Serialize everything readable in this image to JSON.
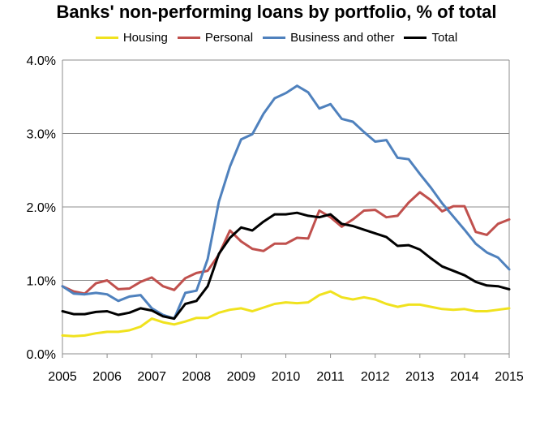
{
  "chart_data": {
    "type": "line",
    "title": "Banks' non-performing loans by portfolio, % of total",
    "xlabel": "",
    "ylabel": "",
    "ylim": [
      0,
      4.0
    ],
    "xlim": [
      2005,
      2015
    ],
    "grid": true,
    "legend_position": "top",
    "yticks": [
      "0.0%",
      "1.0%",
      "2.0%",
      "3.0%",
      "4.0%"
    ],
    "xticks": [
      "2005",
      "2006",
      "2007",
      "2008",
      "2009",
      "2010",
      "2011",
      "2012",
      "2013",
      "2014",
      "2015"
    ],
    "x": [
      2005.0,
      2005.25,
      2005.5,
      2005.75,
      2006.0,
      2006.25,
      2006.5,
      2006.75,
      2007.0,
      2007.25,
      2007.5,
      2007.75,
      2008.0,
      2008.25,
      2008.5,
      2008.75,
      2009.0,
      2009.25,
      2009.5,
      2009.75,
      2010.0,
      2010.25,
      2010.5,
      2010.75,
      2011.0,
      2011.25,
      2011.5,
      2011.75,
      2012.0,
      2012.25,
      2012.5,
      2012.75,
      2013.0,
      2013.25,
      2013.5,
      2013.75,
      2014.0,
      2014.25,
      2014.5,
      2014.75,
      2015.0
    ],
    "series": [
      {
        "name": "Housing",
        "color": "#f0e21e",
        "values": [
          0.25,
          0.24,
          0.25,
          0.28,
          0.3,
          0.3,
          0.32,
          0.37,
          0.48,
          0.43,
          0.4,
          0.44,
          0.49,
          0.49,
          0.56,
          0.6,
          0.62,
          0.58,
          0.63,
          0.68,
          0.7,
          0.69,
          0.7,
          0.8,
          0.85,
          0.77,
          0.74,
          0.77,
          0.74,
          0.68,
          0.64,
          0.67,
          0.67,
          0.64,
          0.61,
          0.6,
          0.61,
          0.58,
          0.58,
          0.6,
          0.62
        ]
      },
      {
        "name": "Personal",
        "color": "#c0504d",
        "values": [
          0.92,
          0.85,
          0.82,
          0.96,
          1.0,
          0.88,
          0.89,
          0.98,
          1.04,
          0.92,
          0.87,
          1.03,
          1.1,
          1.13,
          1.35,
          1.68,
          1.53,
          1.43,
          1.4,
          1.5,
          1.5,
          1.58,
          1.57,
          1.95,
          1.86,
          1.73,
          1.83,
          1.95,
          1.96,
          1.86,
          1.88,
          2.06,
          2.2,
          2.09,
          1.94,
          2.01,
          2.01,
          1.66,
          1.62,
          1.77,
          1.83
        ]
      },
      {
        "name": "Business and other",
        "color": "#4f81bd",
        "values": [
          0.92,
          0.82,
          0.81,
          0.83,
          0.81,
          0.72,
          0.78,
          0.8,
          0.62,
          0.53,
          0.48,
          0.83,
          0.86,
          1.29,
          2.07,
          2.55,
          2.92,
          2.99,
          3.27,
          3.48,
          3.55,
          3.65,
          3.56,
          3.34,
          3.4,
          3.2,
          3.16,
          3.02,
          2.89,
          2.91,
          2.67,
          2.65,
          2.45,
          2.26,
          2.05,
          1.87,
          1.69,
          1.5,
          1.38,
          1.31,
          1.15
        ]
      },
      {
        "name": "Total",
        "color": "#000000",
        "values": [
          0.58,
          0.54,
          0.54,
          0.57,
          0.58,
          0.53,
          0.56,
          0.62,
          0.59,
          0.51,
          0.48,
          0.68,
          0.72,
          0.92,
          1.36,
          1.58,
          1.72,
          1.68,
          1.8,
          1.9,
          1.9,
          1.92,
          1.88,
          1.86,
          1.9,
          1.77,
          1.74,
          1.69,
          1.64,
          1.59,
          1.47,
          1.48,
          1.42,
          1.3,
          1.19,
          1.13,
          1.07,
          0.98,
          0.93,
          0.92,
          0.88
        ]
      }
    ]
  }
}
